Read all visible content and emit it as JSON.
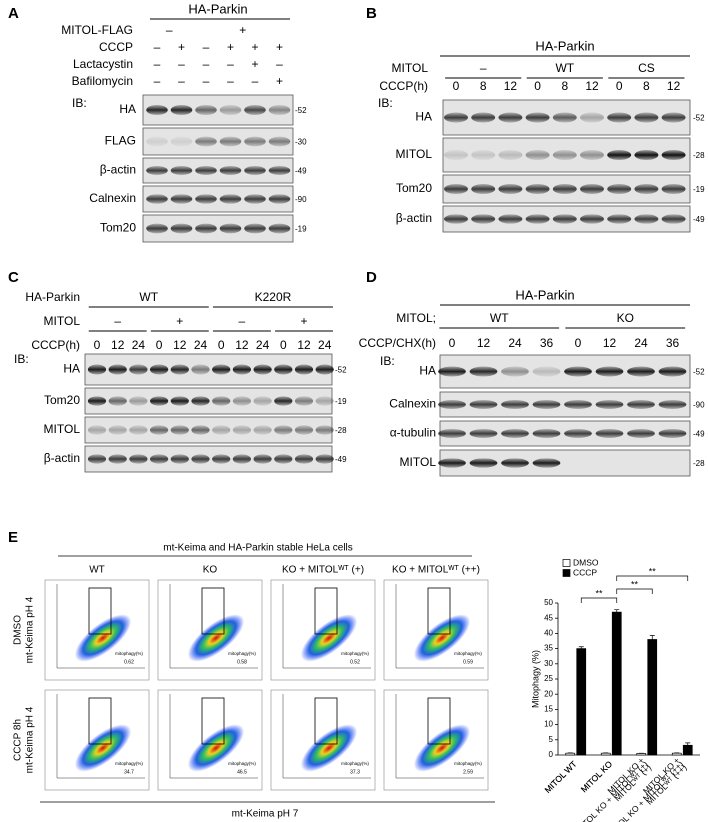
{
  "panel_a": {
    "label": "A",
    "header": "HA-Parkin",
    "conditions": [
      {
        "name": "MITOL-FLAG",
        "groups": [
          "–",
          "+"
        ]
      },
      {
        "name": "CCCP",
        "lanes": [
          "–",
          "+",
          "–",
          "+",
          "+",
          "+"
        ]
      },
      {
        "name": "Lactacystin",
        "lanes": [
          "–",
          "–",
          "–",
          "–",
          "+",
          "–"
        ]
      },
      {
        "name": "Bafilomycin",
        "lanes": [
          "–",
          "–",
          "–",
          "–",
          "–",
          "+"
        ]
      }
    ],
    "ib": "IB:",
    "blots": [
      {
        "name": "HA",
        "mw": "-52"
      },
      {
        "name": "FLAG",
        "mw": "-30"
      },
      {
        "name": "β-actin",
        "mw": "-49"
      },
      {
        "name": "Calnexin",
        "mw": "-90"
      },
      {
        "name": "Tom20",
        "mw": "-19"
      }
    ]
  },
  "panel_b": {
    "label": "B",
    "header": "HA-Parkin",
    "conditions": [
      {
        "name": "MITOL",
        "groups": [
          "–",
          "WT",
          "CS"
        ]
      },
      {
        "name": "CCCP(h)",
        "lanes": [
          "0",
          "8",
          "12",
          "0",
          "8",
          "12",
          "0",
          "8",
          "12"
        ]
      }
    ],
    "ib": "IB:",
    "blots": [
      {
        "name": "HA",
        "mw": "-52"
      },
      {
        "name": "MITOL",
        "mw": "-28"
      },
      {
        "name": "Tom20",
        "mw": "-19"
      },
      {
        "name": "β-actin",
        "mw": "-49"
      }
    ]
  },
  "panel_c": {
    "label": "C",
    "conditions": [
      {
        "name": "HA-Parkin",
        "groups": [
          "WT",
          "K220R"
        ]
      },
      {
        "name": "MITOL",
        "groups": [
          "–",
          "+",
          "–",
          "+"
        ]
      },
      {
        "name": "CCCP(h)",
        "lanes": [
          "0",
          "12",
          "24",
          "0",
          "12",
          "24",
          "0",
          "12",
          "24",
          "0",
          "12",
          "24"
        ]
      }
    ],
    "ib": "IB:",
    "blots": [
      {
        "name": "HA",
        "mw": "-52"
      },
      {
        "name": "Tom20",
        "mw": "-19"
      },
      {
        "name": "MITOL",
        "mw": "-28"
      },
      {
        "name": "β-actin",
        "mw": "-49"
      }
    ]
  },
  "panel_d": {
    "label": "D",
    "header": "HA-Parkin",
    "conditions": [
      {
        "name": "MITOL;",
        "groups": [
          "WT",
          "KO"
        ]
      },
      {
        "name": "CCCP/CHX(h)",
        "lanes": [
          "0",
          "12",
          "24",
          "36",
          "0",
          "12",
          "24",
          "36"
        ]
      }
    ],
    "ib": "IB:",
    "blots": [
      {
        "name": "HA",
        "mw": "-52"
      },
      {
        "name": "Calnexin",
        "mw": "-90"
      },
      {
        "name": "α-tubulin",
        "mw": "-49"
      },
      {
        "name": "MITOL",
        "mw": "-28"
      }
    ]
  },
  "panel_e": {
    "label": "E",
    "title": "mt-Keima and HA-Parkin stable HeLa cells",
    "columns": [
      "WT",
      "KO",
      "KO + MITOLᵂᵀ (+)",
      "KO + MITOLᵂᵀ (++)"
    ],
    "rows": [
      {
        "label": [
          "DMSO",
          "mt-Keima pH 4"
        ],
        "values": [
          "0.62",
          "0.58",
          "0.52",
          "0.59"
        ]
      },
      {
        "label": [
          "CCCP 8h",
          "mt-Keima pH 4"
        ],
        "values": [
          "34.7",
          "46.5",
          "37.3",
          "2.59"
        ]
      }
    ],
    "gate_label": "mitophagy(%)",
    "x_label": "mt-Keima pH 7"
  },
  "chart_data": {
    "type": "bar",
    "y_label": "Mitophagy (%)",
    "categories": [
      "MITOL WT",
      "MITOL KO",
      "MITOL KO + MITOLᵂᵀ (+)",
      "MITOL KO + MITOLᵂᵀ (++)"
    ],
    "series": [
      {
        "name": "DMSO",
        "color": "#ffffff",
        "values": [
          0.6,
          0.6,
          0.5,
          0.6
        ],
        "errors": [
          0.1,
          0.1,
          0.1,
          0.1
        ]
      },
      {
        "name": "CCCP",
        "color": "#000000",
        "values": [
          35,
          47,
          38,
          3.2
        ],
        "errors": [
          0.6,
          0.8,
          1.3,
          0.8
        ]
      }
    ],
    "ylim": [
      0,
      50
    ],
    "yticks": [
      0,
      5,
      10,
      15,
      20,
      25,
      30,
      35,
      40,
      45,
      50
    ],
    "legend": "top-left",
    "annotations": [
      "**",
      "**",
      "**"
    ]
  }
}
